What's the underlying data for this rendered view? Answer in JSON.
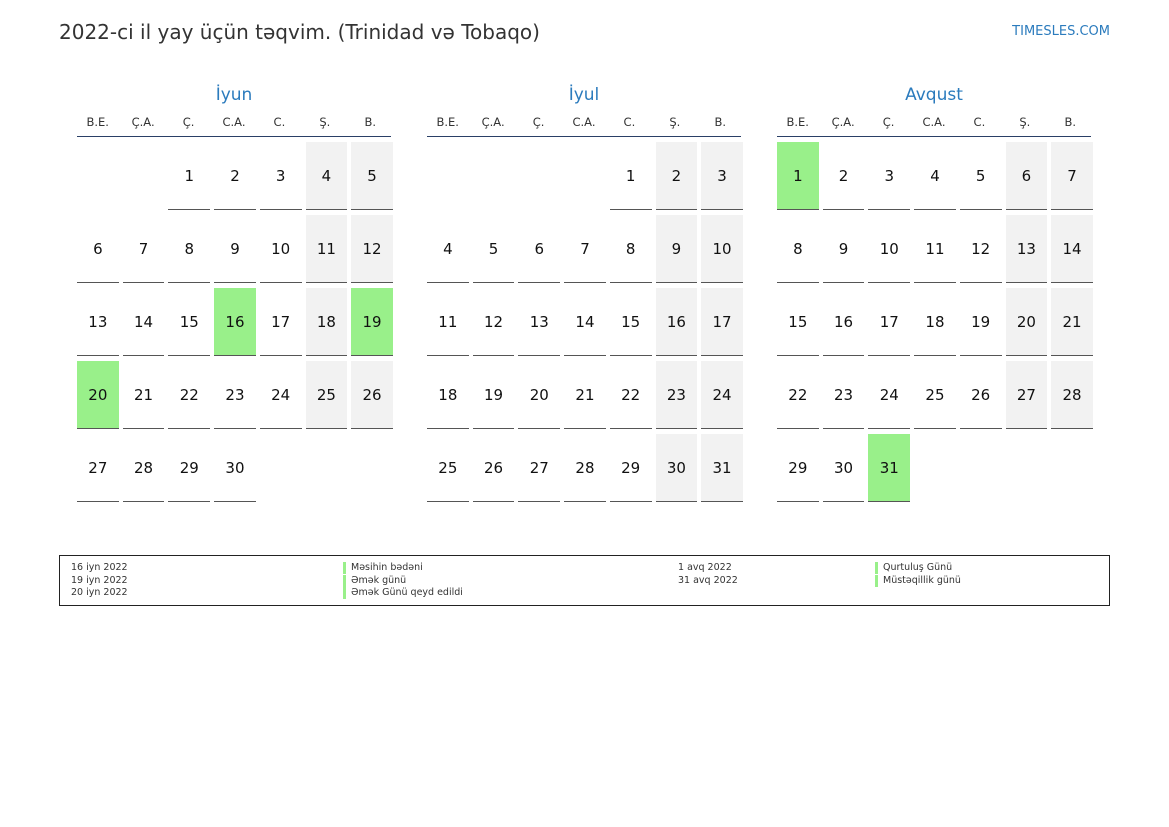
{
  "title": "2022-ci il yay üçün təqvim. (Trinidad və Tobaqo)",
  "brand": "TIMESLES.COM",
  "colors": {
    "accent": "#2b7bbd",
    "holiday": "#99f08a",
    "weekend": "#f2f2f2"
  },
  "weekdays": [
    "B.E.",
    "Ç.A.",
    "Ç.",
    "C.A.",
    "C.",
    "Ş.",
    "B."
  ],
  "months": [
    {
      "name": "İyun",
      "start_offset": 2,
      "days": 30,
      "holidays": [
        16,
        19,
        20
      ]
    },
    {
      "name": "İyul",
      "start_offset": 4,
      "days": 31,
      "holidays": []
    },
    {
      "name": "Avqust",
      "start_offset": 0,
      "days": 31,
      "holidays": [
        1,
        31
      ]
    }
  ],
  "legend": {
    "left": [
      {
        "date": "16 iyn 2022",
        "name": "Məsihin bədəni"
      },
      {
        "date": "19 iyn 2022",
        "name": "Əmək günü"
      },
      {
        "date": "20 iyn 2022",
        "name": "Əmək Günü qeyd edildi"
      }
    ],
    "right": [
      {
        "date": "1 avq 2022",
        "name": "Qurtuluş Günü"
      },
      {
        "date": "31 avq 2022",
        "name": "Müstəqillik günü"
      }
    ]
  }
}
